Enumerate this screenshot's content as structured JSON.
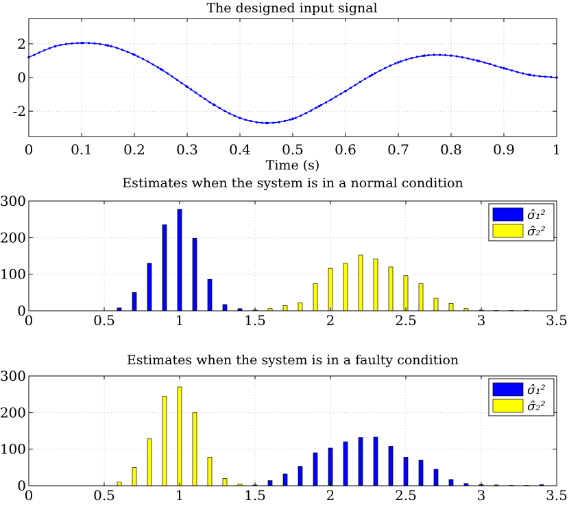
{
  "chart_data": [
    {
      "type": "line",
      "title": "The designed input signal",
      "xlabel": "Time (s)",
      "ylabel": "",
      "xlim": [
        0,
        1
      ],
      "ylim": [
        -3.5,
        3.5
      ],
      "grid": true,
      "marker": "dot",
      "color": "#0000ff",
      "xticks": [
        "0",
        "0.1",
        "0.2",
        "0.3",
        "0.4",
        "0.5",
        "0.6",
        "0.7",
        "0.8",
        "0.9",
        "1"
      ],
      "yticks": [
        "2",
        "0",
        "-2"
      ],
      "ytick_values": [
        2,
        0,
        -2
      ],
      "x": [
        0,
        0.05,
        0.1,
        0.15,
        0.2,
        0.25,
        0.3,
        0.35,
        0.4,
        0.45,
        0.5,
        0.55,
        0.6,
        0.65,
        0.7,
        0.75,
        0.8,
        0.85,
        0.9,
        0.95,
        1.0
      ],
      "y": [
        1.2,
        1.85,
        2.05,
        1.9,
        1.35,
        0.5,
        -0.55,
        -1.6,
        -2.4,
        -2.7,
        -2.45,
        -1.7,
        -0.8,
        0.15,
        0.9,
        1.3,
        1.3,
        1.0,
        0.55,
        0.15,
        0.0
      ]
    },
    {
      "type": "bar",
      "title": "Estimates when the system is in a normal condition",
      "xlim": [
        0,
        3.5
      ],
      "ylim": [
        0,
        300
      ],
      "grid": true,
      "legend": "top-right",
      "xticks": [
        "0",
        "0.5",
        "1",
        "1.5",
        "2",
        "2.5",
        "3",
        "3.5"
      ],
      "xtick_values": [
        0,
        0.5,
        1,
        1.5,
        2,
        2.5,
        3,
        3.5
      ],
      "yticks": [
        "300",
        "200",
        "100",
        "0"
      ],
      "ytick_values": [
        300,
        200,
        100,
        0
      ],
      "series": [
        {
          "name": "σ̂₁²",
          "color": "#0000ff",
          "x": [
            0.6,
            0.7,
            0.8,
            0.9,
            1.0,
            1.1,
            1.2,
            1.3,
            1.4,
            1.5
          ],
          "values": [
            8,
            50,
            130,
            235,
            277,
            198,
            86,
            17,
            6,
            2
          ]
        },
        {
          "name": "σ̂₂²",
          "color": "#ffff00",
          "x": [
            1.5,
            1.6,
            1.7,
            1.8,
            1.9,
            2.0,
            2.1,
            2.2,
            2.3,
            2.4,
            2.5,
            2.6,
            2.7,
            2.8,
            2.9,
            3.0,
            3.1,
            3.2,
            3.3
          ],
          "values": [
            2,
            6,
            14,
            22,
            74,
            116,
            130,
            152,
            142,
            120,
            96,
            74,
            35,
            20,
            6,
            2,
            1,
            1,
            1
          ]
        }
      ]
    },
    {
      "type": "bar",
      "title": "Estimates when the system is in a faulty condition",
      "xlim": [
        0,
        3.5
      ],
      "ylim": [
        0,
        300
      ],
      "grid": true,
      "legend": "top-right",
      "xticks": [
        "0",
        "0.5",
        "1",
        "1.5",
        "2",
        "2.5",
        "3",
        "3.5"
      ],
      "xtick_values": [
        0,
        0.5,
        1,
        1.5,
        2,
        2.5,
        3,
        3.5
      ],
      "yticks": [
        "300",
        "200",
        "100",
        "0"
      ],
      "ytick_values": [
        300,
        200,
        100,
        0
      ],
      "series": [
        {
          "name": "σ̂₁²",
          "color": "#0000ff",
          "x": [
            1.5,
            1.6,
            1.7,
            1.8,
            1.9,
            2.0,
            2.1,
            2.2,
            2.3,
            2.4,
            2.5,
            2.6,
            2.7,
            2.8,
            2.9,
            3.0,
            3.1,
            3.2,
            3.3,
            3.4
          ],
          "values": [
            2,
            14,
            32,
            53,
            90,
            103,
            120,
            132,
            133,
            108,
            78,
            70,
            45,
            17,
            6,
            3,
            2,
            1,
            1,
            3
          ]
        },
        {
          "name": "σ̂₂²",
          "color": "#ffff00",
          "x": [
            0.6,
            0.7,
            0.8,
            0.9,
            1.0,
            1.1,
            1.2,
            1.3,
            1.4
          ],
          "values": [
            10,
            50,
            128,
            245,
            270,
            200,
            78,
            20,
            5
          ]
        }
      ]
    }
  ]
}
